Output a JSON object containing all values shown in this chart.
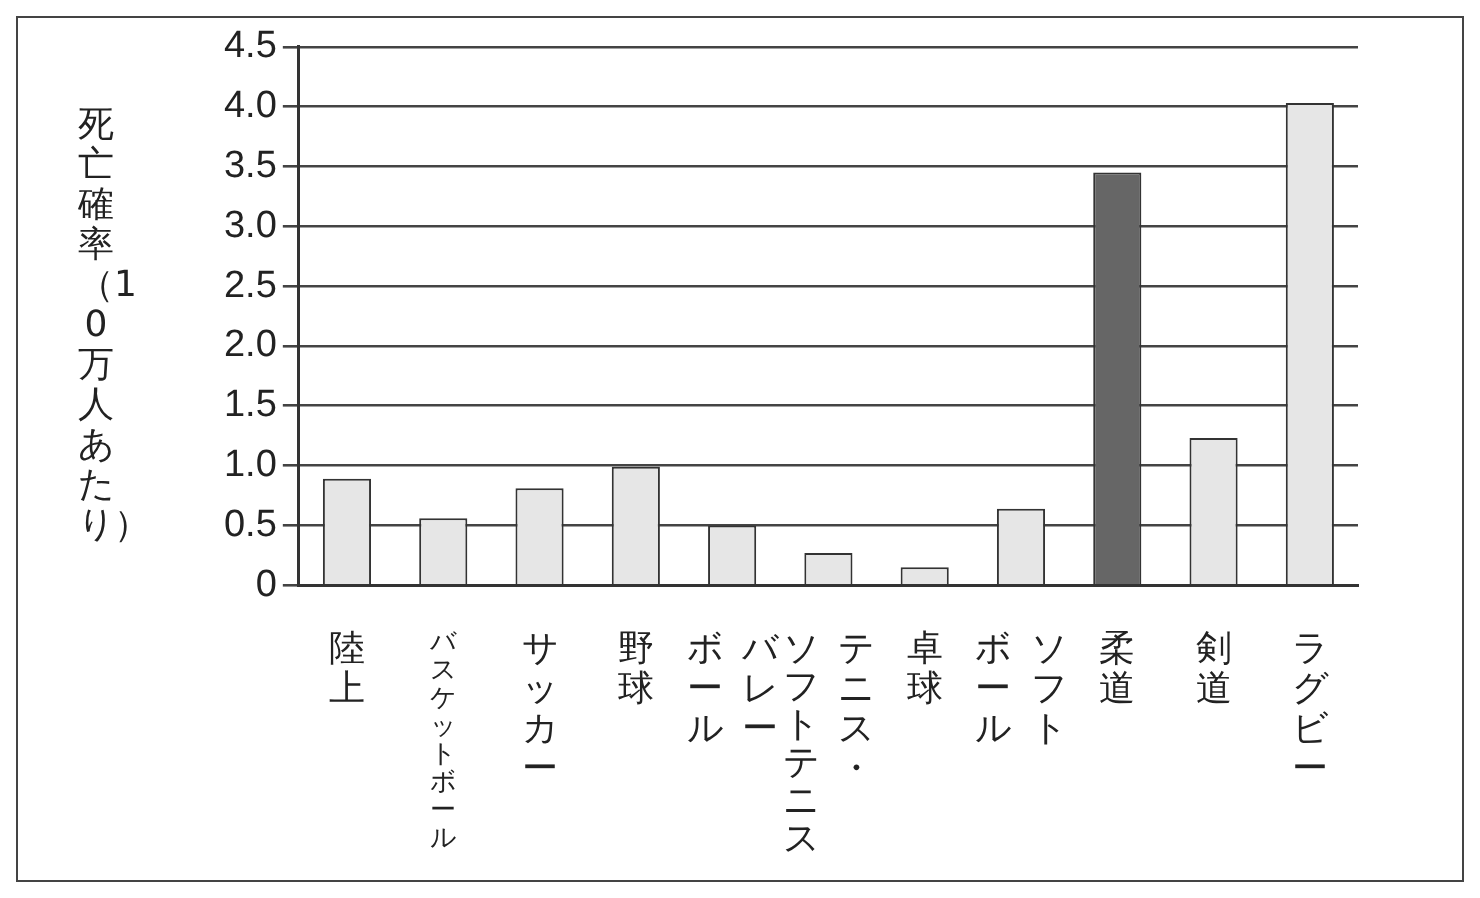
{
  "chart_data": {
    "type": "bar",
    "ylabel": "死亡確率（10万人あたり）",
    "categories": [
      "陸上",
      "バスケットボール",
      "サッカー",
      "野球",
      "バレーボール",
      "テニス・ソフトテニス",
      "卓球",
      "ソフトボール",
      "柔道",
      "剣道",
      "ラグビー"
    ],
    "values": [
      0.89,
      0.56,
      0.81,
      0.99,
      0.5,
      0.27,
      0.15,
      0.64,
      3.45,
      1.23,
      4.03
    ],
    "colors": [
      "#e6e6e6",
      "#e6e6e6",
      "#e6e6e6",
      "#e6e6e6",
      "#e6e6e6",
      "#e6e6e6",
      "#e6e6e6",
      "#e6e6e6",
      "#666666",
      "#e6e6e6",
      "#e6e6e6"
    ],
    "ylim": [
      0,
      4.5
    ],
    "yticks": [
      0,
      0.5,
      {
        "value": 1,
        "label": "1.0"
      },
      1.5,
      {
        "value": 2,
        "label": "2.0"
      },
      2.5,
      {
        "value": 3,
        "label": "3.0"
      },
      3.5,
      {
        "value": 4,
        "label": "4.0"
      },
      4.5
    ],
    "grid": "y",
    "legend": false
  }
}
